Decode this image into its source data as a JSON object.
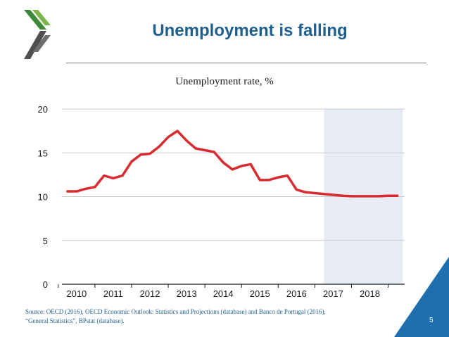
{
  "slide": {
    "title": "Unemployment is falling",
    "source_line1": "Source: OECD (2016), OECD Economic Outlook: Statistics and Projections (database) and Banco de Portugal (2016),",
    "source_line2": "“General Statistics”, BPstat (database).",
    "page_number": "5",
    "logo": "oecd-logo",
    "colors": {
      "title": "#1f5f8e",
      "line": "#d92b2f",
      "projection_band": "#e8ecf5",
      "logo_green": "#3c8a3a",
      "corner": "#1f6fae"
    }
  },
  "chart_data": {
    "type": "line",
    "title": "Unemployment rate, %",
    "xlabel": "",
    "ylabel": "",
    "ylim": [
      0,
      20
    ],
    "yticks": [
      0,
      5,
      10,
      15,
      20
    ],
    "xticks": [
      "2010",
      "2011",
      "2012",
      "2013",
      "2014",
      "2015",
      "2016",
      "2017",
      "2018"
    ],
    "grid": "horizontal",
    "projection_band": [
      2016.75,
      2018.9
    ],
    "series": [
      {
        "name": "",
        "x": [
          2009.75,
          2010.0,
          2010.25,
          2010.5,
          2010.75,
          2011.0,
          2011.25,
          2011.5,
          2011.75,
          2012.0,
          2012.25,
          2012.5,
          2012.75,
          2013.0,
          2013.25,
          2013.5,
          2013.75,
          2014.0,
          2014.25,
          2014.5,
          2014.75,
          2015.0,
          2015.25,
          2015.5,
          2015.75,
          2016.0,
          2016.25,
          2016.5,
          2016.75,
          2017.0,
          2017.25,
          2017.5,
          2017.75,
          2018.0,
          2018.25,
          2018.5,
          2018.75
        ],
        "values": [
          10.6,
          10.6,
          10.9,
          11.1,
          12.4,
          12.1,
          12.4,
          14.0,
          14.8,
          14.9,
          15.7,
          16.8,
          17.5,
          16.4,
          15.5,
          15.3,
          15.1,
          13.9,
          13.1,
          13.5,
          13.7,
          11.9,
          11.9,
          12.2,
          12.4,
          10.8,
          10.5,
          10.4,
          10.3,
          10.2,
          10.1,
          10.05,
          10.05,
          10.05,
          10.05,
          10.1,
          10.1
        ]
      }
    ]
  }
}
